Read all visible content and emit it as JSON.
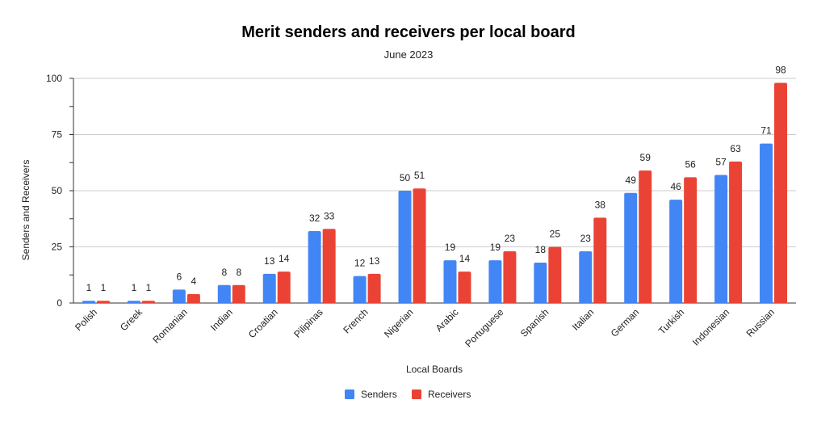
{
  "chart_data": {
    "type": "bar",
    "title": "Merit senders and receivers per local board",
    "subtitle": "June 2023",
    "xlabel": "Local Boards",
    "ylabel": "Senders and Receivers",
    "ylim": [
      0,
      100
    ],
    "yticks": [
      0,
      25,
      50,
      75,
      100
    ],
    "grid": true,
    "legend_position": "bottom",
    "categories": [
      "Polish",
      "Greek",
      "Romanian",
      "Indian",
      "Croatian",
      "Pilipinas",
      "French",
      "Nigerian",
      "Arabic",
      "Portuguese",
      "Spanish",
      "Italian",
      "German",
      "Turkish",
      "Indonesian",
      "Russian"
    ],
    "series": [
      {
        "name": "Senders",
        "color": "#4285f4",
        "values": [
          1,
          1,
          6,
          8,
          13,
          32,
          12,
          50,
          19,
          19,
          18,
          23,
          49,
          46,
          57,
          71
        ]
      },
      {
        "name": "Receivers",
        "color": "#ea4335",
        "values": [
          1,
          1,
          4,
          8,
          14,
          33,
          13,
          51,
          14,
          23,
          25,
          38,
          59,
          56,
          63,
          98
        ]
      }
    ]
  }
}
